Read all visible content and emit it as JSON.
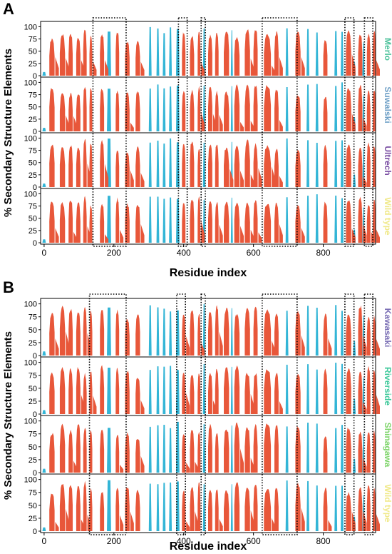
{
  "colors": {
    "helix": "#e8573a",
    "strand": "#33b5d6",
    "variant_text": {
      "Merlo": "#4dc29b",
      "Suwalski": "#6e9fc6",
      "Ultrech": "#7b4fa3",
      "Wild type": "#f0e98a",
      "Kawasaki": "#7b6fb5",
      "Riverside": "#3fc99b",
      "Shinagawa": "#7ed46a"
    }
  },
  "figure": {
    "ylabel": "% Secondary Structure Elements",
    "xlabel": "Residue index"
  },
  "chart_data": [
    {
      "type": "bar",
      "panel": "A",
      "xlabel": "Residue index",
      "ylabel": "% Secondary Structure Elements",
      "xlim": [
        -10,
        950
      ],
      "ylim": [
        0,
        105
      ],
      "xticks": [
        0,
        200,
        400,
        600,
        800
      ],
      "yticks": [
        0,
        25,
        50,
        75,
        100
      ],
      "legend": "variant name at right of each row",
      "series_names": [
        "Merlo",
        "Suwalski",
        "Ultrech",
        "Wild type"
      ],
      "highlight_ranges": [
        [
          140,
          235
        ],
        [
          385,
          410
        ],
        [
          450,
          462
        ],
        [
          625,
          725
        ],
        [
          862,
          888
        ],
        [
          918,
          942
        ]
      ]
    },
    {
      "type": "bar",
      "panel": "B",
      "xlabel": "Residue index",
      "ylabel": "% Secondary Structure Elements",
      "xlim": [
        -10,
        950
      ],
      "ylim": [
        0,
        105
      ],
      "xticks": [
        0,
        200,
        400,
        600,
        800
      ],
      "yticks": [
        0,
        25,
        50,
        75,
        100
      ],
      "legend": "variant name at right of each row",
      "series_names": [
        "Kawasaki",
        "Riverside",
        "Shinagawa",
        "Wild type"
      ],
      "highlight_ranges": [
        [
          130,
          235
        ],
        [
          380,
          405
        ],
        [
          450,
          462
        ],
        [
          625,
          725
        ],
        [
          862,
          888
        ],
        [
          918,
          942
        ]
      ]
    }
  ],
  "profile": {
    "note_units": "residue index ranges and percent values",
    "helix_segments": [
      [
        15,
        30,
        95
      ],
      [
        45,
        60,
        98
      ],
      [
        70,
        82,
        100
      ],
      [
        92,
        104,
        100
      ],
      [
        112,
        122,
        100
      ],
      [
        130,
        138,
        95
      ],
      [
        160,
        172,
        98
      ],
      [
        205,
        215,
        95
      ],
      [
        232,
        245,
        90
      ],
      [
        262,
        275,
        85
      ],
      [
        395,
        405,
        95
      ],
      [
        418,
        430,
        98
      ],
      [
        440,
        448,
        100
      ],
      [
        470,
        482,
        100
      ],
      [
        490,
        500,
        100
      ],
      [
        515,
        530,
        100
      ],
      [
        545,
        560,
        100
      ],
      [
        575,
        590,
        100
      ],
      [
        600,
        612,
        100
      ],
      [
        630,
        650,
        100
      ],
      [
        660,
        672,
        98
      ],
      [
        720,
        735,
        95
      ],
      [
        800,
        812,
        90
      ],
      [
        865,
        880,
        95
      ],
      [
        900,
        912,
        100
      ],
      [
        925,
        935,
        95
      ],
      [
        942,
        950,
        98
      ]
    ],
    "strand_segments": [
      [
        -5,
        5,
        8
      ],
      [
        180,
        192,
        100
      ],
      [
        300,
        308,
        100
      ],
      [
        322,
        330,
        100
      ],
      [
        340,
        348,
        100
      ],
      [
        358,
        366,
        100
      ],
      [
        378,
        388,
        100
      ],
      [
        455,
        462,
        100
      ],
      [
        535,
        541,
        100
      ],
      [
        692,
        700,
        100
      ],
      [
        752,
        760,
        100
      ],
      [
        778,
        786,
        100
      ],
      [
        832,
        840,
        100
      ],
      [
        850,
        858,
        100
      ],
      [
        885,
        893,
        30
      ],
      [
        912,
        918,
        80
      ]
    ]
  },
  "rows_A": [
    {
      "name": "Merlo",
      "seed": 1
    },
    {
      "name": "Suwalski",
      "seed": 2
    },
    {
      "name": "Ultrech",
      "seed": 3
    },
    {
      "name": "Wild type",
      "seed": 4
    }
  ],
  "rows_B": [
    {
      "name": "Kawasaki",
      "seed": 5
    },
    {
      "name": "Riverside",
      "seed": 6
    },
    {
      "name": "Shinagawa",
      "seed": 7
    },
    {
      "name": "Wild type",
      "seed": 8
    }
  ],
  "labels": {
    "panel_a": "A",
    "panel_b": "B"
  }
}
